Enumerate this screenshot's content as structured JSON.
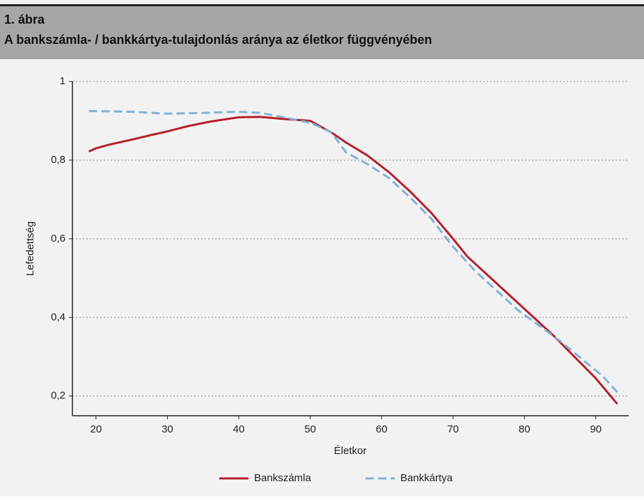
{
  "chart_data": {
    "type": "line",
    "figure_label": "1. ábra",
    "title": "A bankszámla- / bankkártya-tulajdonlás aránya az életkor függvényében",
    "xlabel": "Életkor",
    "ylabel": "Lefedettség",
    "xlim": [
      16.7,
      94.6
    ],
    "xticks": [
      20,
      30,
      40,
      50,
      60,
      70,
      80,
      90
    ],
    "ylim": [
      0.15,
      1
    ],
    "yticks": [
      {
        "value": 0.2,
        "label": "0,2"
      },
      {
        "value": 0.4,
        "label": "0,4"
      },
      {
        "value": 0.6,
        "label": "0,6"
      },
      {
        "value": 0.8,
        "label": "0,8"
      },
      1
    ],
    "grid": true,
    "legend": "bottom",
    "series": [
      {
        "name": "Bankszámla",
        "color": "#b5202a",
        "dashed": false,
        "x": [
          19,
          20,
          22,
          25,
          28,
          30,
          33,
          36,
          40,
          43,
          46,
          50,
          53,
          55,
          58,
          61,
          64,
          67,
          70,
          72,
          75,
          78,
          81,
          84,
          87,
          90,
          93
        ],
        "values": [
          0.822,
          0.83,
          0.84,
          0.852,
          0.865,
          0.873,
          0.887,
          0.898,
          0.909,
          0.91,
          0.905,
          0.9,
          0.87,
          0.845,
          0.812,
          0.77,
          0.72,
          0.665,
          0.6,
          0.555,
          0.505,
          0.455,
          0.405,
          0.355,
          0.3,
          0.245,
          0.18
        ]
      },
      {
        "name": "Bankkártya",
        "color": "#7fb2d9",
        "dashed": true,
        "x": [
          19,
          25,
          30,
          35,
          40,
          43,
          46,
          50,
          53,
          55,
          58,
          61,
          64,
          67,
          70,
          73,
          76,
          79,
          82,
          85,
          88,
          91,
          93
        ],
        "values": [
          0.925,
          0.923,
          0.918,
          0.92,
          0.923,
          0.92,
          0.91,
          0.895,
          0.87,
          0.82,
          0.79,
          0.755,
          0.705,
          0.65,
          0.58,
          0.52,
          0.47,
          0.42,
          0.38,
          0.34,
          0.295,
          0.25,
          0.21
        ]
      }
    ]
  }
}
